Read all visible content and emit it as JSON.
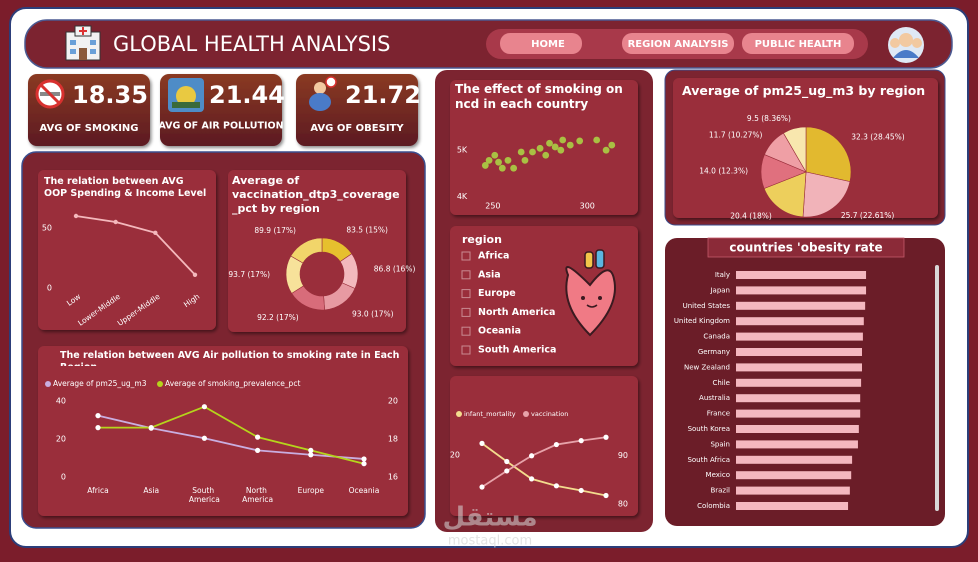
{
  "header": {
    "title": "GLOBAL HEALTH ANALYSIS"
  },
  "nav": [
    "HOME",
    "REGION ANALYSIS",
    "PUBLIC HEALTH"
  ],
  "kpis": [
    {
      "value": 18.35,
      "label": "AVG OF SMOKING"
    },
    {
      "value": 21.44,
      "label": "AVG OF AIR POLLUTION"
    },
    {
      "value": 21.72,
      "label": "AVG OF OBESITY"
    }
  ],
  "slicer": {
    "title": "region",
    "options": [
      "Africa",
      "Asia",
      "Europe",
      "North America",
      "Oceania",
      "South America"
    ]
  },
  "watermark": {
    "logo": "مستقل",
    "site": "mostaql.com"
  },
  "chart_data": [
    {
      "type": "line",
      "title": "The relation between AVG OOP Spending & Income Level",
      "categories": [
        "Low",
        "Lower-Middle",
        "Upper-Middle",
        "High"
      ],
      "values": [
        60,
        55,
        46,
        11
      ],
      "color": "#f4b8bc",
      "ylim": [
        0,
        62
      ],
      "yticks": [
        0,
        50
      ]
    },
    {
      "type": "donut",
      "title": "Average of vaccination_dtp3_coverage_pct by region",
      "values": [
        83.5,
        86.8,
        93.0,
        92.2,
        93.7,
        89.9
      ],
      "value_labels": [
        "83.5 (15%)",
        "86.8 (16%)",
        "93.0 (17%)",
        "92.2 (17%)",
        "93.7 (17%)",
        "89.9 (17%)"
      ],
      "colors": [
        "#e6c02e",
        "#f3b9bd",
        "#e79aa2",
        "#d86c7a",
        "#f7e29a",
        "#f1d56a"
      ]
    },
    {
      "type": "line",
      "title": "The relation between AVG Air pollution to smoking rate in Each Region",
      "categories": [
        "Africa",
        "Asia",
        "South America",
        "North America",
        "Europe",
        "Oceania"
      ],
      "series": [
        {
          "name": "Average of pm25_ug_m3",
          "color": "#c9aee0",
          "values": [
            32.3,
            25.7,
            20.4,
            14.0,
            11.7,
            9.5
          ]
        },
        {
          "name": "Average of smoking_prevalence_pct",
          "color": "#b5d41c",
          "axis": "y2",
          "values": [
            18.6,
            18.6,
            19.7,
            18.1,
            17.4,
            16.7
          ]
        }
      ],
      "ylim": [
        0,
        40
      ],
      "yticks": [
        0,
        20,
        40
      ],
      "y2lim": [
        16,
        20
      ],
      "y2ticks": [
        16,
        18,
        20
      ]
    },
    {
      "type": "scatter",
      "title": "The effect of smoking on ncd in each country",
      "color": "#a9c043",
      "x": [
        246,
        248,
        251,
        253,
        255,
        258,
        261,
        265,
        267,
        271,
        275,
        278,
        280,
        283,
        286,
        287,
        291,
        296,
        305,
        310,
        313
      ],
      "values": [
        4670,
        4780,
        4890,
        4740,
        4610,
        4780,
        4610,
        4960,
        4780,
        4960,
        5040,
        4890,
        5150,
        5070,
        5000,
        5220,
        5110,
        5200,
        5220,
        5000,
        5110
      ],
      "xlim": [
        240,
        320
      ],
      "xticks": [
        250,
        300
      ],
      "ylim": [
        3900,
        5350
      ],
      "yticks": [
        {
          "value": 4000,
          "label": "4K"
        },
        {
          "value": 5000,
          "label": "5K"
        }
      ]
    },
    {
      "type": "line",
      "categories": [
        null,
        null,
        null,
        null,
        null,
        null
      ],
      "series": [
        {
          "name": "infant_mortality",
          "color": "#f3dc8e",
          "values": [
            23,
            18.3,
            13.8,
            12,
            10.8,
            9.5
          ]
        },
        {
          "name": "vaccination",
          "color": "#e7a3aa",
          "axis": "y2",
          "values": [
            83.5,
            86.8,
            89.9,
            92.2,
            93.0,
            93.7
          ]
        }
      ],
      "ylim": [
        6,
        27.5
      ],
      "yticks": [
        20
      ],
      "y2lim": [
        79,
        96
      ],
      "y2ticks": [
        80,
        90
      ]
    },
    {
      "type": "pie",
      "title": "Average of pm25_ug_m3 by region",
      "values": [
        32.3,
        25.7,
        20.4,
        14.0,
        11.7,
        9.5
      ],
      "value_labels": [
        "32.3 (28.45%)",
        "25.7 (22.61%)",
        "20.4 (18%)",
        "14.0 (12.3%)",
        "11.7 (10.27%)",
        "9.5 (8.36%)"
      ],
      "colors": [
        "#e2b92f",
        "#f1b3b9",
        "#edcf5c",
        "#e0707e",
        "#ef9fa5",
        "#f8e7ae"
      ]
    },
    {
      "type": "bar",
      "orientation": "horizontal",
      "title": "countries 'obesity rate",
      "categories": [
        "Italy",
        "Japan",
        "United States",
        "United Kingdom",
        "Canada",
        "Germany",
        "New Zealand",
        "Chile",
        "Australia",
        "France",
        "South Korea",
        "Spain",
        "South Africa",
        "Mexico",
        "Brazil",
        "Colombia"
      ],
      "values": [
        28.9,
        28.9,
        28.7,
        28.4,
        28.2,
        28.0,
        28.0,
        27.8,
        27.6,
        27.6,
        27.3,
        27.1,
        25.8,
        25.6,
        25.3,
        24.9
      ],
      "color": "#f4b7bf",
      "xlim": [
        0,
        30
      ]
    }
  ]
}
